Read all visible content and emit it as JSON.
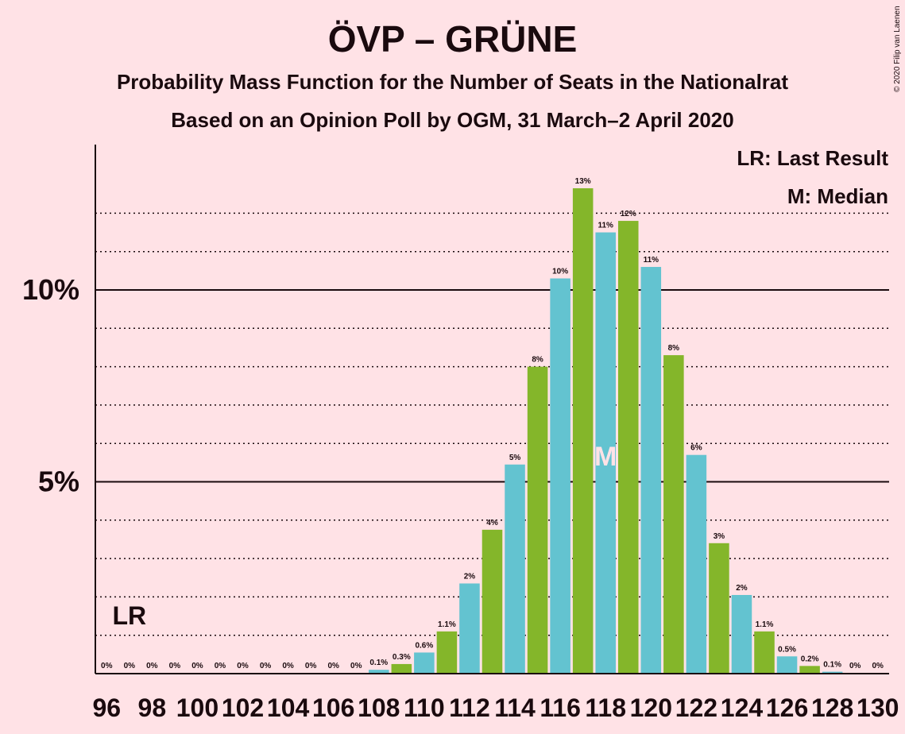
{
  "title": "ÖVP – GRÜNE",
  "subtitle1": "Probability Mass Function for the Number of Seats in the Nationalrat",
  "subtitle2": "Based on an Opinion Poll by OGM, 31 March–2 April 2020",
  "copyright": "© 2020 Filip van Laenen",
  "legend": {
    "last_result": "LR: Last Result",
    "median": "M: Median"
  },
  "colors": {
    "background": "#FFE2E6",
    "bar_even": "#63C3D0",
    "bar_odd": "#84B62A",
    "text": "#1a0a0e"
  },
  "chart_data": {
    "type": "bar",
    "x": [
      96,
      97,
      98,
      99,
      100,
      101,
      102,
      103,
      104,
      105,
      106,
      107,
      108,
      109,
      110,
      111,
      112,
      113,
      114,
      115,
      116,
      117,
      118,
      119,
      120,
      121,
      122,
      123,
      124,
      125,
      126,
      127,
      128,
      129,
      130
    ],
    "values": [
      0,
      0,
      0,
      0,
      0,
      0,
      0,
      0,
      0,
      0,
      0,
      0,
      0.1,
      0.25,
      0.55,
      1.1,
      2.35,
      3.75,
      5.45,
      8.0,
      10.3,
      12.65,
      11.5,
      11.8,
      10.6,
      8.3,
      5.7,
      3.4,
      2.05,
      1.1,
      0.45,
      0.2,
      0.05,
      0,
      0
    ],
    "data_labels": [
      "0%",
      "0%",
      "0%",
      "0%",
      "0%",
      "0%",
      "0%",
      "0%",
      "0%",
      "0%",
      "0%",
      "0%",
      "0.1%",
      "0.3%",
      "0.6%",
      "1.1%",
      "2%",
      "4%",
      "5%",
      "8%",
      "10%",
      "13%",
      "11%",
      "12%",
      "11%",
      "8%",
      "6%",
      "3%",
      "2%",
      "1.1%",
      "0.5%",
      "0.2%",
      "0.1%",
      "0%",
      "0%"
    ],
    "x_tick_labels": [
      "96",
      "98",
      "100",
      "102",
      "104",
      "106",
      "108",
      "110",
      "112",
      "114",
      "116",
      "118",
      "120",
      "122",
      "124",
      "126",
      "128",
      "130"
    ],
    "y_tick_labels": [
      "5%",
      "10%"
    ],
    "y_ticks": [
      5,
      10
    ],
    "ylim": [
      0,
      13.5
    ],
    "last_result": {
      "x": 97,
      "label": "LR"
    },
    "median": {
      "x": 118,
      "label": "M"
    },
    "grid": "dotted every 1%, solid at 5% and 10%"
  }
}
